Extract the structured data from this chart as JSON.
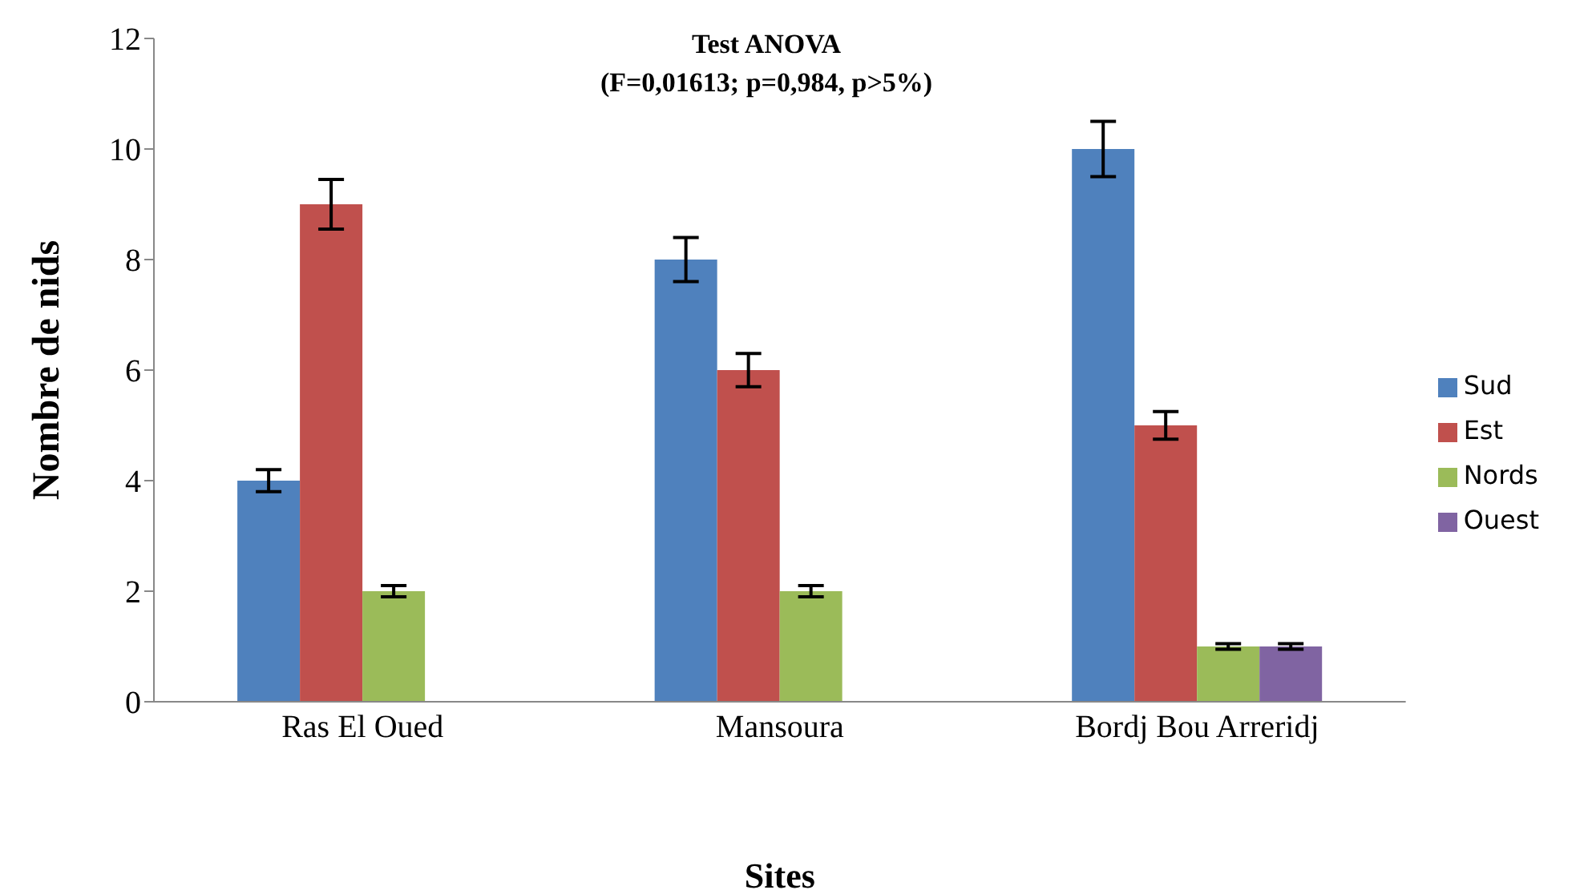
{
  "chart_data": {
    "type": "bar",
    "title": "Test ANOVA",
    "subtitle": "(F=0,01613; p=0,984, p>5%)",
    "xlabel": "Sites",
    "ylabel": "Nombre de nids",
    "categories": [
      "Ras El Oued",
      "Mansoura",
      "Bordj Bou Arreridj"
    ],
    "series": [
      {
        "name": "Sud",
        "color": "#4f81bd",
        "values": [
          4,
          8,
          10
        ],
        "errors": [
          0.2,
          0.4,
          0.5
        ]
      },
      {
        "name": "Est",
        "color": "#c0504d",
        "values": [
          9,
          6,
          5
        ],
        "errors": [
          0.45,
          0.3,
          0.25
        ]
      },
      {
        "name": "Nords",
        "color": "#9bbb59",
        "values": [
          2,
          2,
          1
        ],
        "errors": [
          0.1,
          0.1,
          0.05
        ]
      },
      {
        "name": "Ouest",
        "color": "#8064a2",
        "values": [
          0,
          0,
          1
        ],
        "errors": [
          null,
          null,
          0.05
        ]
      }
    ],
    "ylim": [
      0,
      12
    ],
    "yticks": [
      0,
      2,
      4,
      6,
      8,
      10,
      12
    ],
    "legend": "right"
  }
}
